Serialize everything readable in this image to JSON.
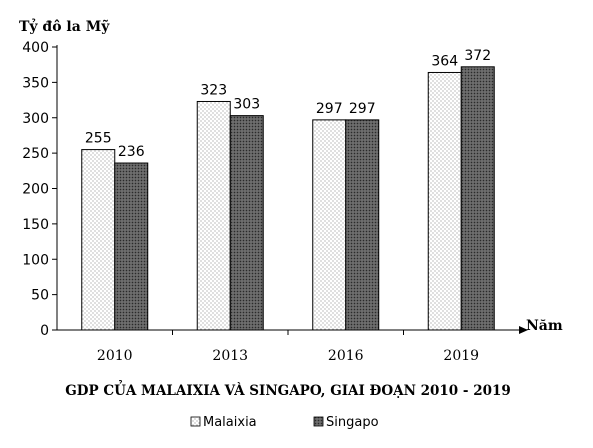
{
  "chart_data": {
    "type": "bar",
    "title": "GDP CỦA MALAIXIA VÀ SINGAPO, GIAI ĐOẠN 2010 - 2019",
    "ylabel": "Tỷ đô la Mỹ",
    "xlabel": "Năm",
    "categories": [
      "2010",
      "2013",
      "2016",
      "2019"
    ],
    "series": [
      {
        "name": "Malaixia",
        "values": [
          255,
          323,
          297,
          364
        ]
      },
      {
        "name": "Singapo",
        "values": [
          236,
          303,
          297,
          372
        ]
      }
    ],
    "ylim": [
      0,
      400
    ],
    "yticks": [
      0,
      50,
      100,
      150,
      200,
      250,
      300,
      350,
      400
    ],
    "grid": false,
    "legend_position": "bottom-center"
  }
}
